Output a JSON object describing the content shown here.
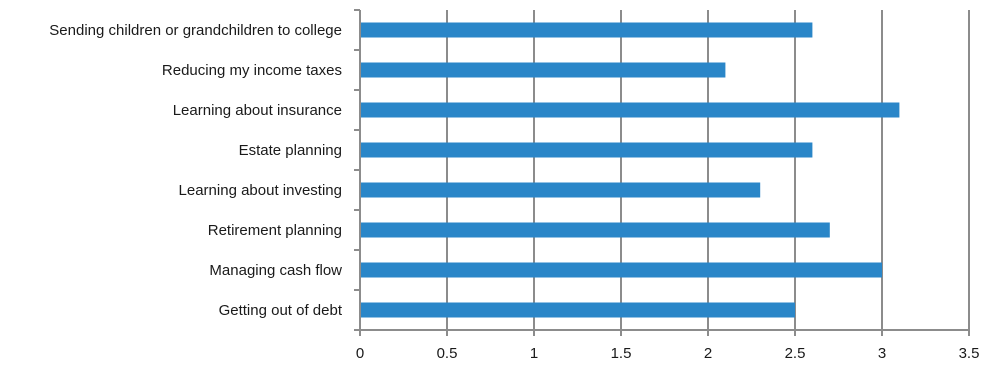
{
  "chart_data": {
    "type": "bar",
    "orientation": "horizontal",
    "categories": [
      "Sending children or grandchildren to college",
      "Reducing my income taxes",
      "Learning about insurance",
      "Estate planning",
      "Learning about investing",
      "Retirement planning",
      "Managing cash flow",
      "Getting out of debt"
    ],
    "values": [
      2.6,
      2.1,
      3.1,
      2.6,
      2.3,
      2.7,
      3.0,
      2.5
    ],
    "xlim": [
      0,
      3.5
    ],
    "x_ticks": [
      "0",
      "0.5",
      "1",
      "1.5",
      "2",
      "2.5",
      "3",
      "3.5"
    ],
    "title": "",
    "xlabel": "",
    "ylabel": "",
    "grid": "vertical",
    "bar_color": "#2a86c8"
  }
}
